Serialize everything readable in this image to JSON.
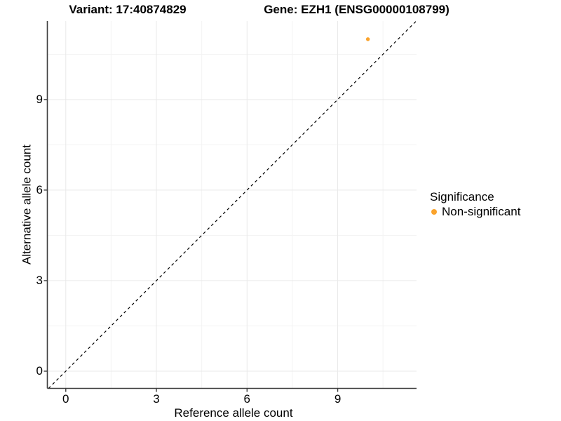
{
  "header": {
    "variant_title": "Variant: 17:40874829",
    "gene_title": "Gene: EZH1 (ENSG00000108799)"
  },
  "legend": {
    "title": "Significance",
    "items": [
      {
        "label": "Non-significant",
        "color": "#FAA32C"
      }
    ]
  },
  "style": {
    "axis_color": "#3c3c3c",
    "grid_major_color": "#E9E9E9",
    "grid_minor_color": "#F3F3F3",
    "reference_line_color": "#000000",
    "point_color": "#FAA32C",
    "background": "#FFFFFF"
  },
  "chart_data": {
    "type": "scatter",
    "titles": [
      "Variant: 17:40874829",
      "Gene: EZH1 (ENSG00000108799)"
    ],
    "xlabel": "Reference allele count",
    "ylabel": "Alternative allele count",
    "xlim": [
      -0.61,
      11.61
    ],
    "ylim": [
      -0.57,
      11.6
    ],
    "x_ticks": [
      0,
      3,
      6,
      9
    ],
    "y_ticks": [
      0,
      3,
      6,
      9
    ],
    "x_minor_ticks": [
      1.5,
      4.5,
      7.5,
      10.5
    ],
    "y_minor_ticks": [
      1.5,
      4.5,
      7.5,
      10.5
    ],
    "grid": true,
    "legend_title": "Significance",
    "legend_position": "right",
    "series": [
      {
        "name": "Non-significant",
        "color": "#FAA32C",
        "points": [
          {
            "x": 10,
            "y": 11
          }
        ]
      }
    ],
    "reference_line": {
      "type": "identity",
      "slope": 1,
      "intercept": 0,
      "style": "dashed",
      "color": "#000000"
    }
  }
}
